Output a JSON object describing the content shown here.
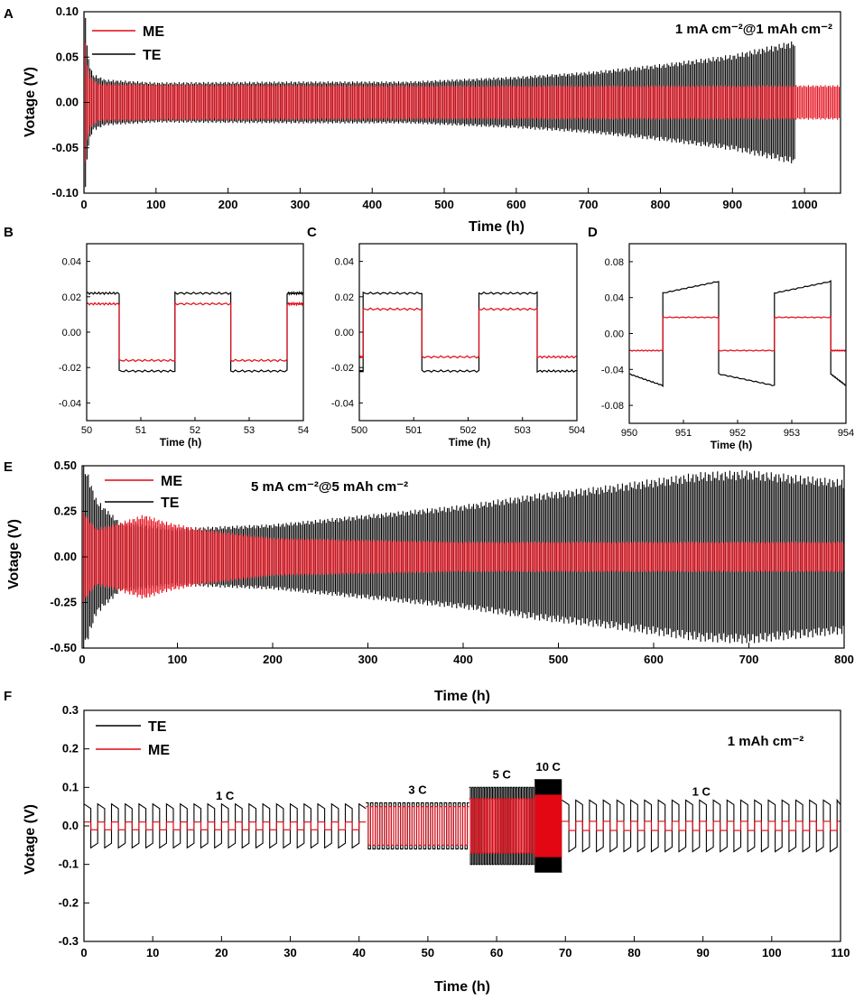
{
  "colors": {
    "me": "#e30613",
    "te": "#000000",
    "axis": "#000000",
    "background": "#ffffff"
  },
  "chart_data": [
    {
      "id": "A",
      "type": "line",
      "panel_label": "A",
      "title": "",
      "annotation": "1 mA cm⁻²@1 mAh cm⁻²",
      "xlabel": "Time (h)",
      "ylabel": "Votage (V)",
      "xlim": [
        0,
        1050
      ],
      "ylim": [
        -0.1,
        0.1
      ],
      "xticks": [
        0,
        100,
        200,
        300,
        400,
        500,
        600,
        700,
        800,
        900,
        1000
      ],
      "yticks": [
        -0.1,
        -0.05,
        0.0,
        0.05,
        0.1
      ],
      "ytick_labels": [
        "-0.10",
        "-0.05",
        "0.00",
        "0.05",
        "0.10"
      ],
      "legend_position": "top-left",
      "series": [
        {
          "name": "ME",
          "color": "#e30613",
          "kind": "cycling",
          "end": 1050,
          "envelope": [
            [
              0,
              0.1
            ],
            [
              1,
              0.1
            ],
            [
              3,
              0.045
            ],
            [
              8,
              0.028
            ],
            [
              20,
              0.02
            ],
            [
              100,
              0.019
            ],
            [
              500,
              0.018
            ],
            [
              1050,
              0.018
            ]
          ]
        },
        {
          "name": "TE",
          "color": "#000000",
          "kind": "cycling",
          "end": 988,
          "envelope": [
            [
              0,
              0.1
            ],
            [
              2,
              0.1
            ],
            [
              5,
              0.05
            ],
            [
              12,
              0.03
            ],
            [
              30,
              0.024
            ],
            [
              100,
              0.021
            ],
            [
              300,
              0.022
            ],
            [
              450,
              0.022
            ],
            [
              600,
              0.027
            ],
            [
              700,
              0.032
            ],
            [
              800,
              0.04
            ],
            [
              900,
              0.05
            ],
            [
              988,
              0.065
            ]
          ]
        }
      ]
    },
    {
      "id": "B",
      "type": "line",
      "panel_label": "B",
      "xlabel": "Time (h)",
      "ylabel": "",
      "xlim": [
        50,
        54
      ],
      "ylim": [
        -0.05,
        0.05
      ],
      "xticks": [
        50,
        51,
        52,
        53,
        54
      ],
      "xtick_labels": [
        "50",
        "51",
        "52",
        "53",
        "54"
      ],
      "yticks": [
        -0.04,
        -0.02,
        0.0,
        0.02,
        0.04
      ],
      "ytick_labels": [
        "-0.04",
        "-0.02",
        "0.00",
        "0.02",
        "0.04"
      ],
      "series": [
        {
          "name": "TE",
          "color": "#000000",
          "kind": "square",
          "start": 50,
          "edges": [
            50.6,
            51.63,
            52.66,
            53.7
          ],
          "high": 0.022,
          "low": -0.022,
          "first_level": "high",
          "drift": 0
        },
        {
          "name": "ME",
          "color": "#e30613",
          "kind": "square",
          "start": 50,
          "edges": [
            50.6,
            51.63,
            52.66,
            53.7
          ],
          "high": 0.016,
          "low": -0.016,
          "first_level": "high",
          "drift": 0
        }
      ]
    },
    {
      "id": "C",
      "type": "line",
      "panel_label": "C",
      "xlabel": "Time (h)",
      "ylabel": "",
      "xlim": [
        500,
        504
      ],
      "ylim": [
        -0.05,
        0.05
      ],
      "xticks": [
        500,
        501,
        502,
        503,
        504
      ],
      "xtick_labels": [
        "500",
        "501",
        "502",
        "503",
        "504"
      ],
      "yticks": [
        -0.04,
        -0.02,
        0.0,
        0.02,
        0.04
      ],
      "ytick_labels": [
        "-0.04",
        "-0.02",
        "0.00",
        "0.02",
        "0.04"
      ],
      "series": [
        {
          "name": "TE",
          "color": "#000000",
          "kind": "square",
          "start": 500,
          "edges": [
            500.07,
            501.15,
            502.2,
            503.27
          ],
          "high": 0.022,
          "low": -0.022,
          "first_level": "low",
          "drift": 0
        },
        {
          "name": "ME",
          "color": "#e30613",
          "kind": "square",
          "start": 500,
          "edges": [
            500.07,
            501.15,
            502.2,
            503.27
          ],
          "high": 0.013,
          "low": -0.014,
          "first_level": "low",
          "drift": 0
        }
      ]
    },
    {
      "id": "D",
      "type": "line",
      "panel_label": "D",
      "xlabel": "Time (h)",
      "ylabel": "",
      "xlim": [
        950,
        954
      ],
      "ylim": [
        -0.1,
        0.1
      ],
      "xticks": [
        950,
        951,
        952,
        953,
        954
      ],
      "xtick_labels": [
        "950",
        "951",
        "952",
        "953",
        "954"
      ],
      "yticks": [
        -0.08,
        -0.04,
        0.0,
        0.04,
        0.08
      ],
      "ytick_labels": [
        "-0.08",
        "-0.04",
        "0.00",
        "0.04",
        "0.08"
      ],
      "series": [
        {
          "name": "TE",
          "color": "#000000",
          "kind": "square",
          "start": 950,
          "edges": [
            950.62,
            951.65,
            952.68,
            953.72
          ],
          "high": 0.045,
          "low": -0.045,
          "first_level": "low",
          "drift": 0.013
        },
        {
          "name": "ME",
          "color": "#e30613",
          "kind": "square",
          "start": 950,
          "edges": [
            950.62,
            951.65,
            952.68,
            953.72
          ],
          "high": 0.018,
          "low": -0.019,
          "first_level": "low",
          "drift": 0
        }
      ]
    },
    {
      "id": "E",
      "type": "line",
      "panel_label": "E",
      "annotation": "5 mA cm⁻²@5 mAh cm⁻²",
      "xlabel": "Time (h)",
      "ylabel": "Votage (V)",
      "xlim": [
        0,
        800
      ],
      "ylim": [
        -0.5,
        0.5
      ],
      "xticks": [
        0,
        100,
        200,
        300,
        400,
        500,
        600,
        700,
        800
      ],
      "yticks": [
        -0.5,
        -0.25,
        0.0,
        0.25,
        0.5
      ],
      "ytick_labels": [
        "-0.50",
        "-0.25",
        "0.00",
        "0.25",
        "0.50"
      ],
      "legend_position": "top-left",
      "series": [
        {
          "name": "TE",
          "color": "#000000",
          "kind": "cycling",
          "end": 800,
          "envelope": [
            [
              0,
              0.5
            ],
            [
              5,
              0.45
            ],
            [
              15,
              0.3
            ],
            [
              40,
              0.18
            ],
            [
              100,
              0.15
            ],
            [
              200,
              0.17
            ],
            [
              300,
              0.22
            ],
            [
              400,
              0.27
            ],
            [
              480,
              0.33
            ],
            [
              550,
              0.37
            ],
            [
              650,
              0.44
            ],
            [
              700,
              0.45
            ],
            [
              800,
              0.4
            ]
          ]
        },
        {
          "name": "ME",
          "color": "#e30613",
          "kind": "cycling",
          "end": 800,
          "envelope": [
            [
              0,
              0.25
            ],
            [
              15,
              0.15
            ],
            [
              40,
              0.18
            ],
            [
              65,
              0.22
            ],
            [
              90,
              0.18
            ],
            [
              120,
              0.15
            ],
            [
              200,
              0.1
            ],
            [
              400,
              0.08
            ],
            [
              800,
              0.08
            ]
          ]
        }
      ]
    },
    {
      "id": "F",
      "type": "line",
      "panel_label": "F",
      "annotation": "1 mAh cm⁻²",
      "xlabel": "Time (h)",
      "ylabel": "Votage (V)",
      "xlim": [
        0,
        110
      ],
      "ylim": [
        -0.3,
        0.3
      ],
      "xticks": [
        0,
        10,
        20,
        30,
        40,
        50,
        60,
        70,
        80,
        90,
        100,
        110
      ],
      "yticks": [
        -0.3,
        -0.2,
        -0.1,
        0.0,
        0.1,
        0.2,
        0.3
      ],
      "ytick_labels": [
        "-0.3",
        "-0.2",
        "-0.1",
        "0.0",
        "0.1",
        "0.2",
        "0.3"
      ],
      "legend_position": "top-left",
      "rate_segments": [
        {
          "label": "1 C",
          "start": 0,
          "end": 41,
          "period": 2.0,
          "te_amp": 0.045,
          "me_amp": 0.01
        },
        {
          "label": "3 C",
          "start": 41,
          "end": 56,
          "period": 0.67,
          "te_amp": 0.06,
          "me_amp": 0.05
        },
        {
          "label": "5 C",
          "start": 56,
          "end": 65.5,
          "period": 0.4,
          "te_amp": 0.1,
          "me_amp": 0.07
        },
        {
          "label": "10 C",
          "start": 65.5,
          "end": 69.5,
          "period": 0.2,
          "te_amp": 0.12,
          "me_amp": 0.08
        },
        {
          "label": "1 C",
          "start": 69.5,
          "end": 110,
          "period": 2.0,
          "te_amp": 0.055,
          "me_amp": 0.012
        }
      ],
      "series": [
        {
          "name": "TE",
          "color": "#000000",
          "kind": "rate"
        },
        {
          "name": "ME",
          "color": "#e30613",
          "kind": "rate"
        }
      ]
    }
  ]
}
